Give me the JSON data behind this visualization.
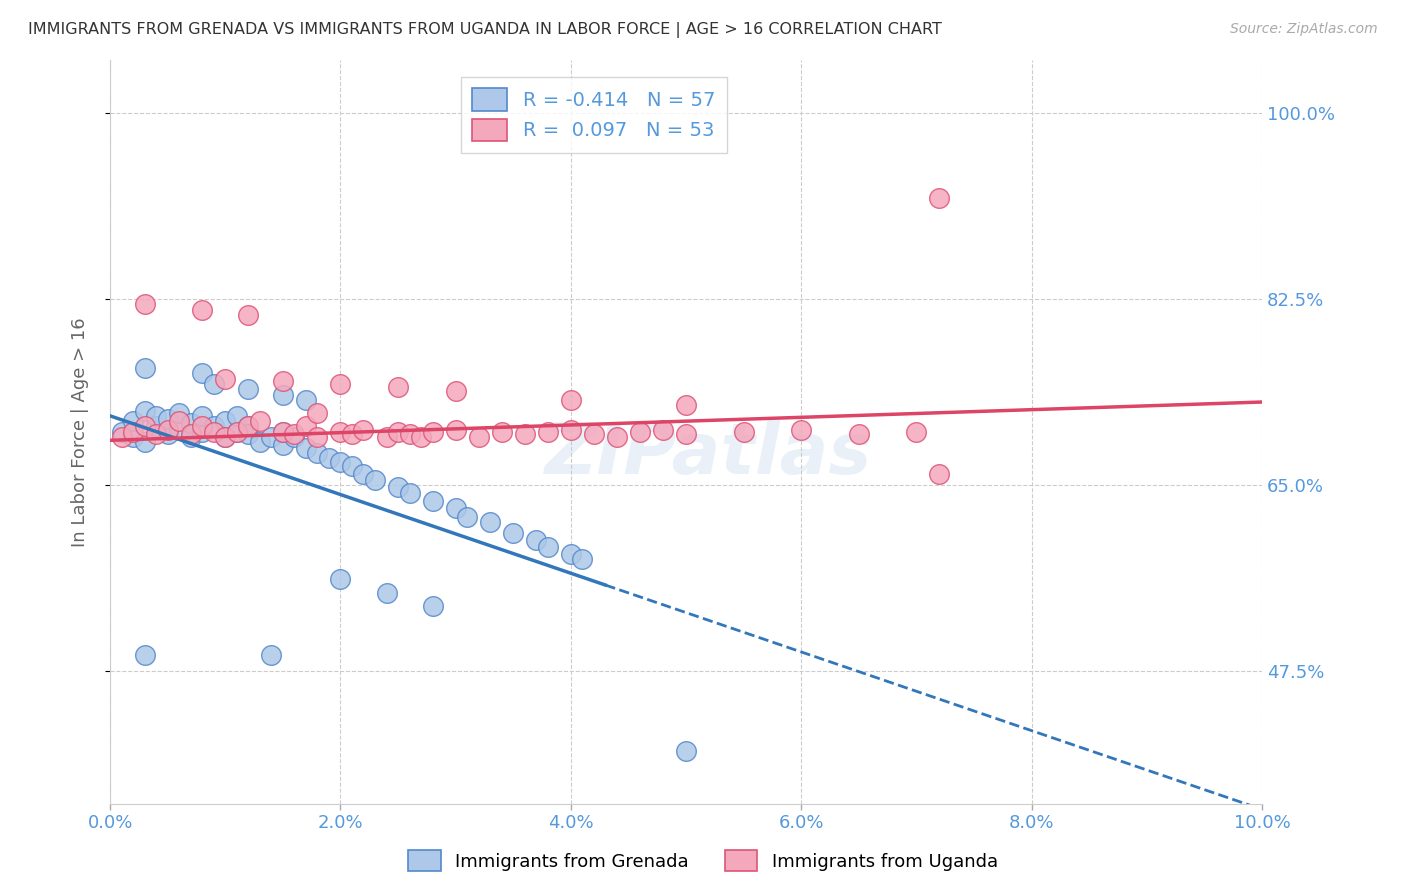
{
  "title": "IMMIGRANTS FROM GRENADA VS IMMIGRANTS FROM UGANDA IN LABOR FORCE | AGE > 16 CORRELATION CHART",
  "source": "Source: ZipAtlas.com",
  "ylabel": "In Labor Force | Age > 16",
  "xlim": [
    0.0,
    0.1
  ],
  "ylim": [
    0.35,
    1.05
  ],
  "yticks": [
    0.475,
    0.65,
    0.825,
    1.0
  ],
  "ytick_labels": [
    "47.5%",
    "65.0%",
    "82.5%",
    "100.0%"
  ],
  "xticks": [
    0.0,
    0.02,
    0.04,
    0.06,
    0.08,
    0.1
  ],
  "xtick_labels": [
    "0.0%",
    "2.0%",
    "4.0%",
    "6.0%",
    "8.0%",
    "10.0%"
  ],
  "grenada_color": "#adc8e8",
  "uganda_color": "#f4a8bc",
  "grenada_edge": "#5588cc",
  "uganda_edge": "#dd5577",
  "trend_grenada_color": "#3377bb",
  "trend_uganda_color": "#dd4466",
  "R_grenada": -0.414,
  "N_grenada": 57,
  "R_uganda": 0.097,
  "N_uganda": 53,
  "legend_label_grenada": "Immigrants from Grenada",
  "legend_label_uganda": "Immigrants from Uganda",
  "background_color": "#ffffff",
  "grid_color": "#cccccc",
  "watermark": "ZIPatlas",
  "axis_label_color": "#5599dd",
  "title_color": "#333333",
  "grenada_x": [
    0.001,
    0.002,
    0.002,
    0.003,
    0.003,
    0.004,
    0.004,
    0.005,
    0.005,
    0.006,
    0.006,
    0.007,
    0.007,
    0.008,
    0.008,
    0.009,
    0.01,
    0.01,
    0.011,
    0.011,
    0.012,
    0.012,
    0.013,
    0.014,
    0.015,
    0.015,
    0.016,
    0.017,
    0.018,
    0.019,
    0.02,
    0.021,
    0.022,
    0.023,
    0.025,
    0.026,
    0.028,
    0.03,
    0.031,
    0.033,
    0.035,
    0.037,
    0.038,
    0.04,
    0.041,
    0.003,
    0.008,
    0.009,
    0.012,
    0.015,
    0.017,
    0.02,
    0.024,
    0.028,
    0.003,
    0.014,
    0.05
  ],
  "grenada_y": [
    0.7,
    0.695,
    0.71,
    0.69,
    0.72,
    0.705,
    0.715,
    0.698,
    0.712,
    0.702,
    0.718,
    0.695,
    0.708,
    0.7,
    0.715,
    0.705,
    0.71,
    0.695,
    0.7,
    0.715,
    0.705,
    0.698,
    0.69,
    0.695,
    0.688,
    0.7,
    0.695,
    0.685,
    0.68,
    0.675,
    0.672,
    0.668,
    0.66,
    0.655,
    0.648,
    0.642,
    0.635,
    0.628,
    0.62,
    0.615,
    0.605,
    0.598,
    0.592,
    0.585,
    0.58,
    0.76,
    0.755,
    0.745,
    0.74,
    0.735,
    0.73,
    0.562,
    0.548,
    0.536,
    0.49,
    0.49,
    0.4
  ],
  "uganda_x": [
    0.001,
    0.002,
    0.003,
    0.004,
    0.005,
    0.006,
    0.007,
    0.008,
    0.009,
    0.01,
    0.011,
    0.012,
    0.013,
    0.015,
    0.016,
    0.017,
    0.018,
    0.02,
    0.021,
    0.022,
    0.024,
    0.025,
    0.026,
    0.027,
    0.028,
    0.03,
    0.032,
    0.034,
    0.036,
    0.038,
    0.04,
    0.042,
    0.044,
    0.046,
    0.048,
    0.05,
    0.055,
    0.06,
    0.065,
    0.07,
    0.01,
    0.015,
    0.02,
    0.025,
    0.03,
    0.04,
    0.05,
    0.003,
    0.008,
    0.012,
    0.018,
    0.072,
    0.072
  ],
  "uganda_y": [
    0.695,
    0.7,
    0.705,
    0.698,
    0.702,
    0.71,
    0.698,
    0.705,
    0.7,
    0.695,
    0.7,
    0.705,
    0.71,
    0.7,
    0.698,
    0.705,
    0.695,
    0.7,
    0.698,
    0.702,
    0.695,
    0.7,
    0.698,
    0.695,
    0.7,
    0.702,
    0.695,
    0.7,
    0.698,
    0.7,
    0.702,
    0.698,
    0.695,
    0.7,
    0.702,
    0.698,
    0.7,
    0.702,
    0.698,
    0.7,
    0.75,
    0.748,
    0.745,
    0.742,
    0.738,
    0.73,
    0.725,
    0.82,
    0.815,
    0.81,
    0.718,
    0.66,
    0.92
  ],
  "trend_grenada_x0": 0.0,
  "trend_grenada_y0": 0.715,
  "trend_grenada_x1": 0.1,
  "trend_grenada_y1": 0.345,
  "trend_grenada_solid_end": 0.043,
  "trend_uganda_x0": 0.0,
  "trend_uganda_y0": 0.692,
  "trend_uganda_x1": 0.1,
  "trend_uganda_y1": 0.728
}
